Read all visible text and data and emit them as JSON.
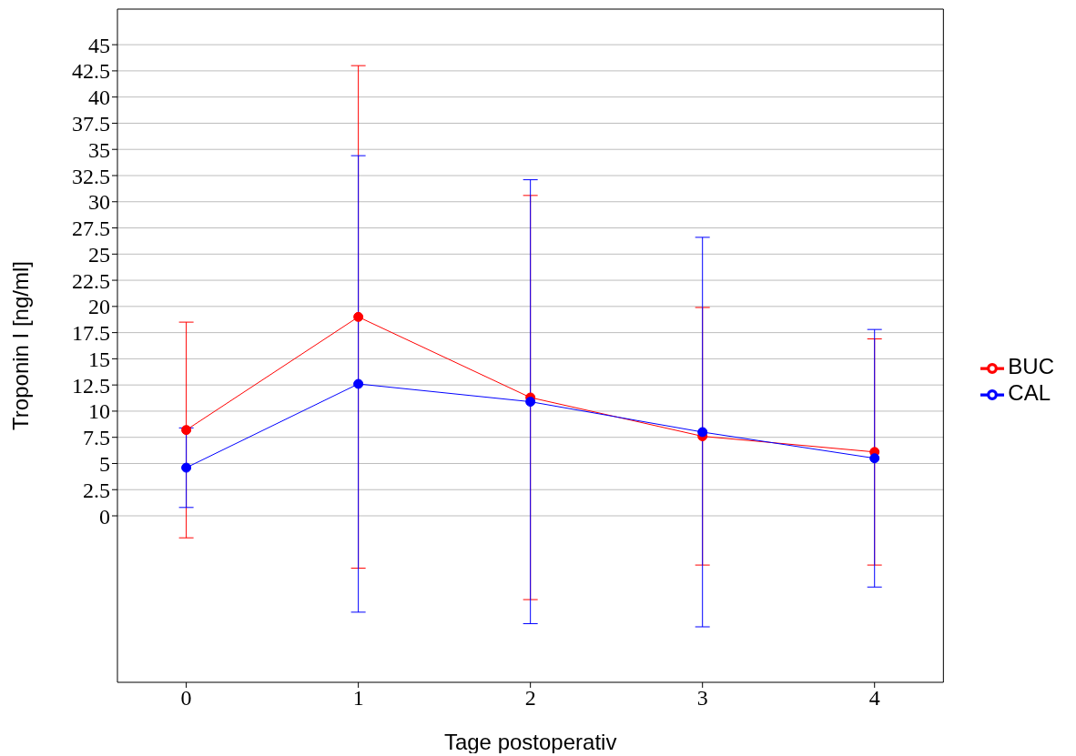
{
  "chart_data": {
    "type": "line",
    "xlabel": "Tage postoperativ",
    "ylabel": "Troponin I [ng/ml]",
    "x": [
      0,
      1,
      2,
      3,
      4
    ],
    "series": [
      {
        "name": "BUC",
        "color": "#ff0000",
        "values": [
          8.2,
          19.0,
          11.3,
          7.6,
          6.1
        ],
        "errors": [
          10.3,
          24.0,
          19.3,
          12.3,
          10.8
        ]
      },
      {
        "name": "CAL",
        "color": "#0000ff",
        "values": [
          4.6,
          12.6,
          10.9,
          8.0,
          5.5
        ],
        "errors": [
          3.8,
          21.8,
          21.2,
          18.6,
          12.3
        ]
      }
    ],
    "xlim": [
      -0.4,
      4.4
    ],
    "xticks": [
      0,
      1,
      2,
      3,
      4
    ],
    "ylim": [
      -15.9,
      48.4
    ],
    "yticks": [
      0,
      2.5,
      5,
      7.5,
      10,
      12.5,
      15,
      17.5,
      20,
      22.5,
      25,
      27.5,
      30,
      32.5,
      35,
      37.5,
      40,
      42.5,
      45
    ],
    "grid": "y",
    "legend": "right",
    "marker": "circle",
    "line_style": "solid"
  }
}
